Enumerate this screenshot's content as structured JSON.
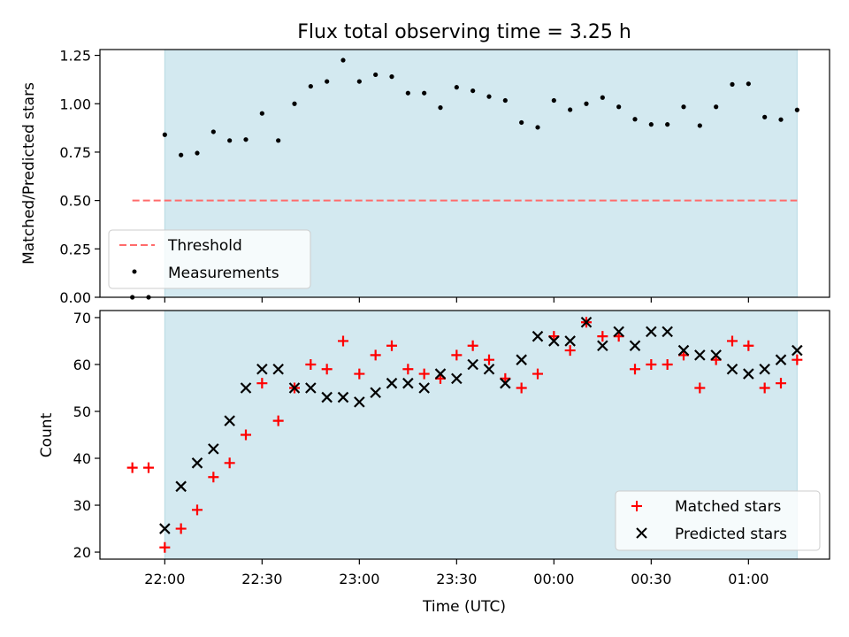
{
  "chart_data": {
    "title": "Flux total observing time = 3.25 h",
    "xlabel": "Time (UTC)",
    "x_ticks": [
      "22:00",
      "22:30",
      "23:00",
      "23:30",
      "00:00",
      "00:30",
      "01:00"
    ],
    "observing_window": {
      "start": "22:00",
      "end": "01:15"
    },
    "x_range": {
      "start": "21:40",
      "end": "01:25"
    },
    "colors": {
      "window": "#d3e9f0",
      "window_edge": "#b7d9e3",
      "matched": "#ff0000",
      "predicted": "#000000",
      "threshold": "#ff6b6b",
      "measurements": "#000000"
    },
    "x_times": [
      "21:50",
      "21:55",
      "22:00",
      "22:05",
      "22:10",
      "22:15",
      "22:20",
      "22:25",
      "22:30",
      "22:35",
      "22:40",
      "22:45",
      "22:50",
      "22:55",
      "23:00",
      "23:05",
      "23:10",
      "23:15",
      "23:20",
      "23:25",
      "23:30",
      "23:35",
      "23:40",
      "23:45",
      "23:50",
      "23:55",
      "00:00",
      "00:05",
      "00:10",
      "00:15",
      "00:20",
      "00:25",
      "00:30",
      "00:35",
      "00:40",
      "00:45",
      "00:50",
      "00:55",
      "01:00",
      "01:05",
      "01:10",
      "01:15"
    ],
    "panels": [
      {
        "type": "scatter",
        "ylabel": "Matched/Predicted stars",
        "ylim": [
          0,
          1.28
        ],
        "y_ticks": [
          "0.00",
          "0.25",
          "0.50",
          "0.75",
          "1.00",
          "1.25"
        ],
        "y_tick_values": [
          0,
          0.25,
          0.5,
          0.75,
          1.0,
          1.25
        ],
        "threshold": {
          "value": 0.5,
          "from": "21:50",
          "to": "01:15"
        },
        "legend": {
          "placement": "lower-left",
          "entries": [
            "Threshold",
            "Measurements"
          ]
        },
        "series": [
          {
            "name": "Measurements",
            "values": [
              0.0,
              0.0,
              0.84,
              0.735,
              0.745,
              0.855,
              0.81,
              0.815,
              0.95,
              0.81,
              1.0,
              1.09,
              1.115,
              1.225,
              1.115,
              1.15,
              1.14,
              1.055,
              1.055,
              0.98,
              1.085,
              1.067,
              1.037,
              1.017,
              0.903,
              0.878,
              1.017,
              0.969,
              1.0,
              1.032,
              0.984,
              0.92,
              0.893,
              0.893,
              0.984,
              0.887,
              0.984,
              1.1,
              1.103,
              0.931,
              0.918,
              0.968
            ]
          }
        ]
      },
      {
        "type": "scatter",
        "ylabel": "Count",
        "ylim": [
          18.5,
          71.5
        ],
        "y_ticks": [
          "20",
          "30",
          "40",
          "50",
          "60",
          "70"
        ],
        "y_tick_values": [
          20,
          30,
          40,
          50,
          60,
          70
        ],
        "legend": {
          "placement": "lower-right",
          "entries": [
            "Matched stars",
            "Predicted stars"
          ]
        },
        "series": [
          {
            "name": "Matched stars",
            "values": [
              38,
              38,
              21,
              25,
              29,
              36,
              39,
              45,
              56,
              48,
              55,
              60,
              59,
              65,
              58,
              62,
              64,
              59,
              58,
              57,
              62,
              64,
              61,
              57,
              55,
              58,
              66,
              63,
              69,
              66,
              66,
              59,
              60,
              60,
              62,
              55,
              61,
              65,
              64,
              55,
              56,
              61
            ]
          },
          {
            "name": "Predicted stars",
            "values": [
              null,
              null,
              25,
              34,
              39,
              42,
              48,
              55,
              59,
              59,
              55,
              55,
              53,
              53,
              52,
              54,
              56,
              56,
              55,
              58,
              57,
              60,
              59,
              56,
              61,
              66,
              65,
              65,
              69,
              64,
              67,
              64,
              67,
              67,
              63,
              62,
              62,
              59,
              58,
              59,
              61,
              63
            ]
          }
        ]
      }
    ]
  }
}
